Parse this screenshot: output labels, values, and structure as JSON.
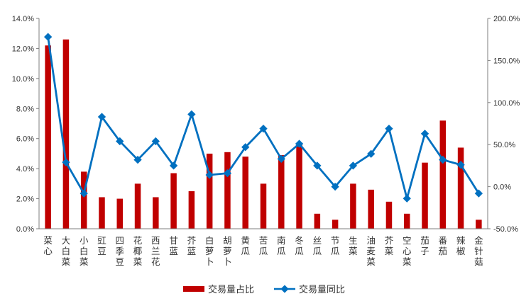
{
  "chart_data": {
    "type": "bar",
    "categories": [
      "菜心",
      "大白菜",
      "小白菜",
      "豇豆",
      "四季豆",
      "花椰菜",
      "西兰花",
      "甘蓝",
      "芥蓝",
      "白萝卜",
      "胡萝卜",
      "黄瓜",
      "苦瓜",
      "南瓜",
      "冬瓜",
      "丝瓜",
      "节瓜",
      "生菜",
      "油麦菜",
      "芥菜",
      "空心菜",
      "茄子",
      "番茄",
      "辣椒",
      "金针菇"
    ],
    "series": [
      {
        "name": "交易量占比",
        "type": "bar",
        "axis": "left",
        "color": "#C00000",
        "values": [
          12.2,
          12.6,
          3.8,
          2.1,
          2.0,
          3.0,
          2.1,
          3.7,
          2.5,
          5.0,
          5.1,
          4.8,
          3.0,
          4.9,
          5.6,
          1.0,
          0.6,
          3.0,
          2.6,
          1.8,
          1.0,
          4.4,
          7.2,
          5.4,
          0.6
        ]
      },
      {
        "name": "交易量同比",
        "type": "line",
        "axis": "right",
        "color": "#0070C0",
        "values": [
          178,
          29,
          -8,
          83,
          54,
          32,
          54,
          25,
          86,
          14,
          16,
          47,
          69,
          33,
          51,
          25,
          0,
          25,
          39,
          69,
          -14,
          63,
          32,
          26,
          -8
        ]
      }
    ],
    "y_left": {
      "min": 0,
      "max": 14,
      "step": 2,
      "format": "percent1"
    },
    "y_right": {
      "min": -50,
      "max": 200,
      "step": 50,
      "format": "percent1"
    },
    "legend_position": "bottom",
    "grid": false,
    "title": ""
  }
}
